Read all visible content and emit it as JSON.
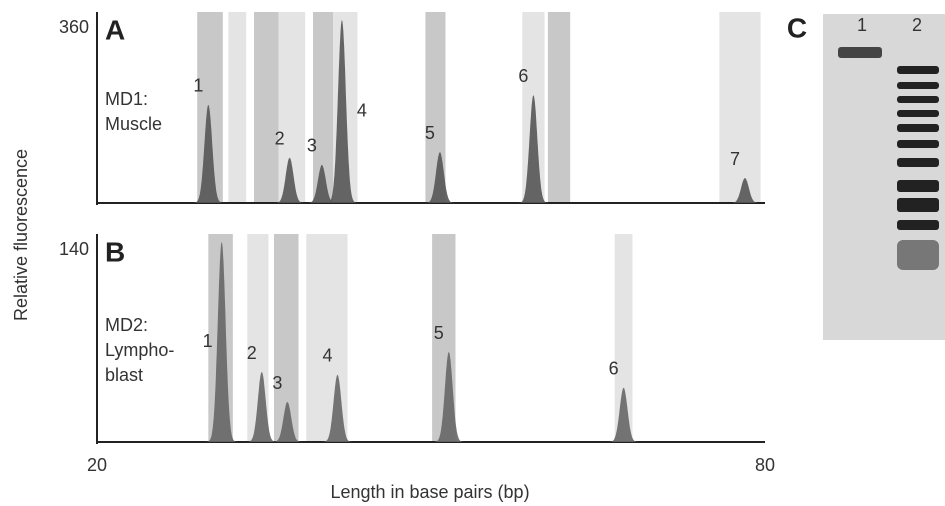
{
  "chart_data": [
    {
      "type": "peaks",
      "panel": "A",
      "annotation": [
        "MD1:",
        "Muscle"
      ],
      "ylabel": "Relative fluorescence",
      "xlim": [
        20,
        80
      ],
      "ylim": [
        0,
        360
      ],
      "yticks": [
        360
      ],
      "labels": [
        "1",
        "2",
        "3",
        "4",
        "5",
        "6",
        "7"
      ],
      "x": [
        30.0,
        37.3,
        40.2,
        42.0,
        50.8,
        59.2,
        78.2
      ],
      "values": [
        193,
        89,
        75,
        360,
        100,
        212,
        49
      ],
      "color": "#555555",
      "bands": [
        [
          29.0,
          31.3
        ],
        [
          31.8,
          33.4
        ],
        [
          34.1,
          36.3
        ],
        [
          36.3,
          38.7
        ],
        [
          39.4,
          41.2
        ],
        [
          41.2,
          43.4
        ],
        [
          49.5,
          51.3
        ],
        [
          58.2,
          60.2
        ],
        [
          60.5,
          62.5
        ],
        [
          75.9,
          79.6
        ]
      ]
    },
    {
      "type": "peaks",
      "panel": "B",
      "annotation": [
        "MD2:",
        "Lympho-",
        "blast"
      ],
      "xlabel": "Length in base pairs (bp)",
      "xlim": [
        20,
        80
      ],
      "xticks": [
        20,
        80
      ],
      "ylim": [
        0,
        140
      ],
      "yticks": [
        140
      ],
      "labels": [
        "1",
        "2",
        "3",
        "4",
        "5",
        "6"
      ],
      "x": [
        31.2,
        34.8,
        37.1,
        41.6,
        51.6,
        67.3
      ],
      "values": [
        140,
        49,
        28,
        47,
        63,
        38
      ],
      "color": "#666666",
      "bands": [
        [
          30.0,
          32.2
        ],
        [
          33.5,
          35.4
        ],
        [
          35.9,
          38.1
        ],
        [
          38.8,
          42.5
        ],
        [
          50.1,
          52.2
        ],
        [
          66.5,
          68.1
        ]
      ]
    }
  ],
  "gel": {
    "label": "C",
    "lanes": [
      "1",
      "2"
    ]
  }
}
